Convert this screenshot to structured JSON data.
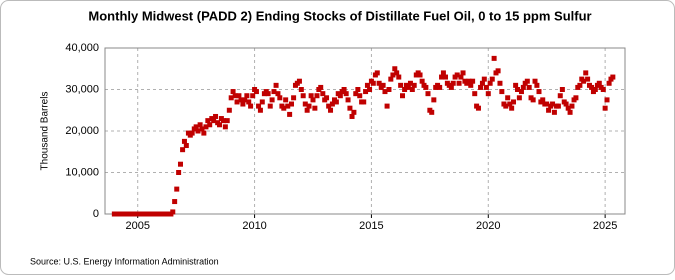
{
  "chart_data": {
    "type": "scatter",
    "title": "Monthly Midwest (PADD 2) Ending Stocks of Distillate Fuel Oil, 0 to 15 ppm Sulfur",
    "y_label": "Thousand Barrels",
    "source": "Source: U.S. Energy Information Administration",
    "color": "#c00000",
    "grid": true,
    "xlim": [
      2003.6,
      2025.85
    ],
    "xticks": [
      2005,
      2010,
      2015,
      2020,
      2025
    ],
    "ylim": [
      0,
      40000
    ],
    "yticks": [
      0,
      {
        "value": 10000,
        "label": "10,000"
      },
      {
        "value": 20000,
        "label": "20,000"
      },
      {
        "value": 30000,
        "label": "30,000"
      },
      {
        "value": 40000,
        "label": "40,000"
      }
    ],
    "x": [
      2004.0,
      2004.08,
      2004.17,
      2004.25,
      2004.33,
      2004.42,
      2004.5,
      2004.58,
      2004.67,
      2004.75,
      2004.83,
      2004.92,
      2005.0,
      2005.08,
      2005.17,
      2005.25,
      2005.33,
      2005.42,
      2005.5,
      2005.58,
      2005.67,
      2005.75,
      2005.83,
      2005.92,
      2006.0,
      2006.08,
      2006.17,
      2006.25,
      2006.33,
      2006.42,
      2006.5,
      2006.58,
      2006.67,
      2006.75,
      2006.83,
      2006.92,
      2007.0,
      2007.08,
      2007.17,
      2007.25,
      2007.33,
      2007.42,
      2007.5,
      2007.58,
      2007.67,
      2007.75,
      2007.83,
      2007.92,
      2008.0,
      2008.08,
      2008.17,
      2008.25,
      2008.33,
      2008.42,
      2008.5,
      2008.58,
      2008.67,
      2008.75,
      2008.83,
      2008.92,
      2009.0,
      2009.08,
      2009.17,
      2009.25,
      2009.33,
      2009.42,
      2009.5,
      2009.58,
      2009.67,
      2009.75,
      2009.83,
      2009.92,
      2010.0,
      2010.08,
      2010.17,
      2010.25,
      2010.33,
      2010.42,
      2010.5,
      2010.58,
      2010.67,
      2010.75,
      2010.83,
      2010.92,
      2011.0,
      2011.08,
      2011.17,
      2011.25,
      2011.33,
      2011.42,
      2011.5,
      2011.58,
      2011.67,
      2011.75,
      2011.83,
      2011.92,
      2012.0,
      2012.08,
      2012.17,
      2012.25,
      2012.33,
      2012.42,
      2012.5,
      2012.58,
      2012.67,
      2012.75,
      2012.83,
      2012.92,
      2013.0,
      2013.08,
      2013.17,
      2013.25,
      2013.33,
      2013.42,
      2013.5,
      2013.58,
      2013.67,
      2013.75,
      2013.83,
      2013.92,
      2014.0,
      2014.08,
      2014.17,
      2014.25,
      2014.33,
      2014.42,
      2014.5,
      2014.58,
      2014.67,
      2014.75,
      2014.83,
      2014.92,
      2015.0,
      2015.08,
      2015.17,
      2015.25,
      2015.33,
      2015.42,
      2015.5,
      2015.58,
      2015.67,
      2015.75,
      2015.83,
      2015.92,
      2016.0,
      2016.08,
      2016.17,
      2016.25,
      2016.33,
      2016.42,
      2016.5,
      2016.58,
      2016.67,
      2016.75,
      2016.83,
      2016.92,
      2017.0,
      2017.08,
      2017.17,
      2017.25,
      2017.33,
      2017.42,
      2017.5,
      2017.58,
      2017.67,
      2017.75,
      2017.83,
      2017.92,
      2018.0,
      2018.08,
      2018.17,
      2018.25,
      2018.33,
      2018.42,
      2018.5,
      2018.58,
      2018.67,
      2018.75,
      2018.83,
      2018.92,
      2019.0,
      2019.08,
      2019.17,
      2019.25,
      2019.33,
      2019.42,
      2019.5,
      2019.58,
      2019.67,
      2019.75,
      2019.83,
      2019.92,
      2020.0,
      2020.08,
      2020.17,
      2020.25,
      2020.33,
      2020.42,
      2020.5,
      2020.58,
      2020.67,
      2020.75,
      2020.83,
      2020.92,
      2021.0,
      2021.08,
      2021.17,
      2021.25,
      2021.33,
      2021.42,
      2021.5,
      2021.58,
      2021.67,
      2021.75,
      2021.83,
      2021.92,
      2022.0,
      2022.08,
      2022.17,
      2022.25,
      2022.33,
      2022.42,
      2022.5,
      2022.58,
      2022.67,
      2022.75,
      2022.83,
      2022.92,
      2023.0,
      2023.08,
      2023.17,
      2023.25,
      2023.33,
      2023.42,
      2023.5,
      2023.58,
      2023.67,
      2023.75,
      2023.83,
      2023.92,
      2024.0,
      2024.08,
      2024.17,
      2024.25,
      2024.33,
      2024.42,
      2024.5,
      2024.58,
      2024.67,
      2024.75,
      2024.83,
      2024.92,
      2025.0,
      2025.08,
      2025.17,
      2025.25,
      2025.33
    ],
    "values": [
      0,
      0,
      0,
      0,
      0,
      0,
      0,
      0,
      0,
      0,
      0,
      0,
      0,
      0,
      0,
      0,
      0,
      0,
      0,
      0,
      0,
      0,
      0,
      0,
      0,
      0,
      0,
      0,
      0,
      0,
      500,
      3000,
      6000,
      10000,
      12000,
      15500,
      17500,
      16500,
      19500,
      19000,
      19500,
      20500,
      21000,
      20000,
      21500,
      20500,
      19500,
      21000,
      22500,
      21500,
      23000,
      22500,
      23500,
      22000,
      21500,
      23000,
      22500,
      21000,
      22500,
      25000,
      28000,
      29500,
      28500,
      27000,
      28500,
      27500,
      26500,
      27500,
      28500,
      27000,
      26000,
      28500,
      30000,
      29500,
      26000,
      25000,
      27000,
      29000,
      29500,
      29000,
      26000,
      27500,
      29500,
      31000,
      29000,
      28000,
      26000,
      25500,
      27500,
      26000,
      24000,
      26500,
      28000,
      31000,
      31500,
      32000,
      30000,
      28500,
      26500,
      25000,
      26000,
      28500,
      27500,
      25500,
      28500,
      30000,
      30500,
      29000,
      27500,
      28000,
      26000,
      25000,
      26500,
      27500,
      27000,
      29000,
      28500,
      29500,
      30000,
      29000,
      27500,
      25500,
      23500,
      24500,
      29000,
      30000,
      28500,
      27000,
      27000,
      29500,
      31000,
      30000,
      32000,
      31500,
      33500,
      34000,
      31500,
      30500,
      31000,
      29500,
      26000,
      30000,
      32500,
      33500,
      35000,
      34000,
      33000,
      31000,
      28500,
      30000,
      31000,
      30500,
      31500,
      30000,
      31000,
      33500,
      34000,
      33500,
      32000,
      31000,
      30500,
      29000,
      25000,
      24500,
      27500,
      30500,
      31000,
      30500,
      33000,
      34000,
      33000,
      31500,
      31000,
      30500,
      31500,
      33000,
      33500,
      31500,
      33000,
      34000,
      32000,
      31500,
      32000,
      31000,
      32000,
      29000,
      26000,
      25500,
      30500,
      31500,
      32500,
      30500,
      29000,
      31500,
      32500,
      37500,
      34000,
      34500,
      31500,
      29500,
      26500,
      26000,
      28000,
      26500,
      25500,
      27000,
      31000,
      30000,
      28000,
      29500,
      30500,
      31500,
      32000,
      30500,
      28000,
      27500,
      32000,
      31000,
      29500,
      27000,
      27500,
      26500,
      26500,
      25000,
      26000,
      26500,
      24500,
      26000,
      26000,
      28500,
      30000,
      27000,
      26500,
      25500,
      24500,
      26000,
      27500,
      28000,
      30500,
      31000,
      32500,
      32000,
      34000,
      32500,
      31000,
      30500,
      29500,
      30000,
      31000,
      31500,
      30500,
      30000,
      25500,
      27500,
      31500,
      32500,
      33000
    ]
  }
}
